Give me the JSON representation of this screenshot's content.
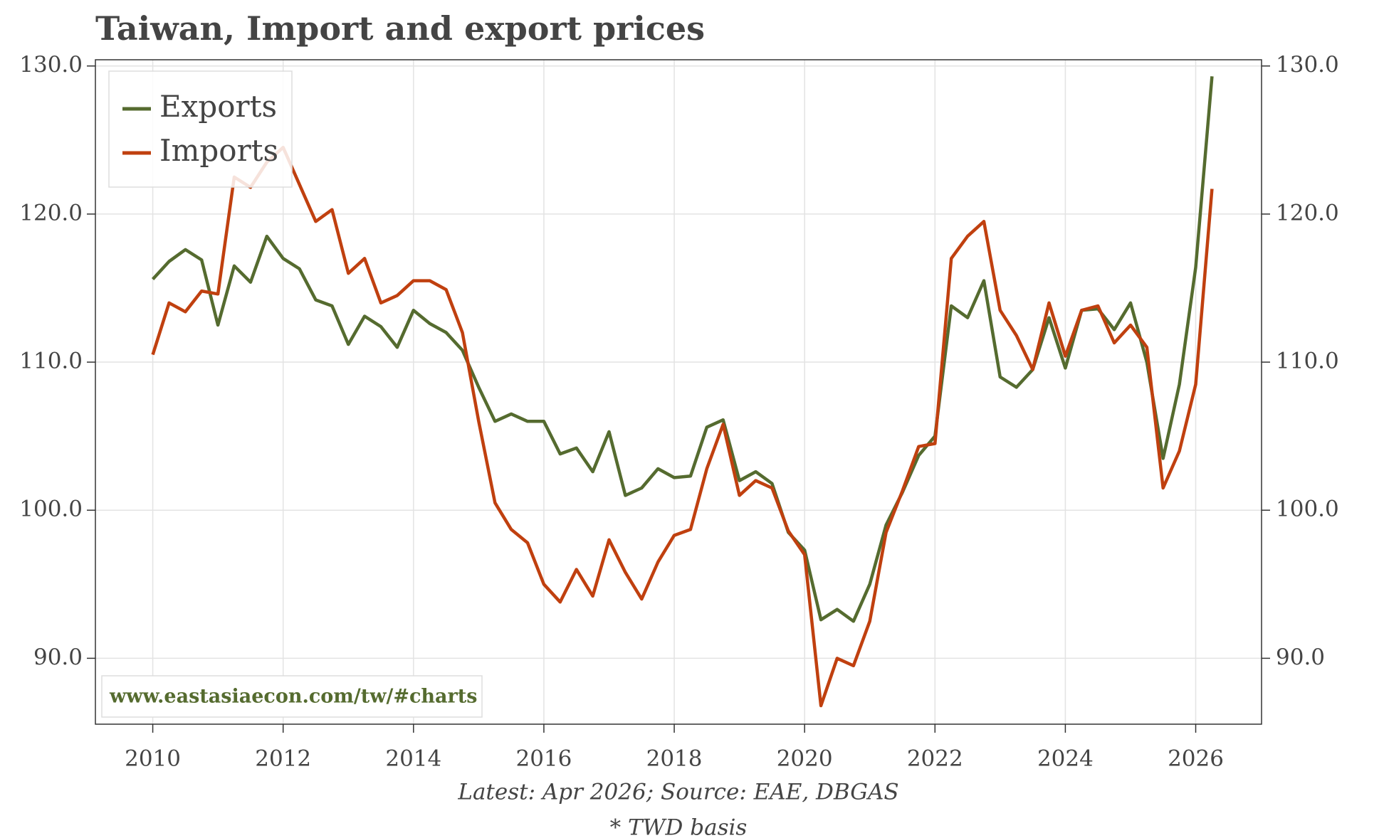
{
  "chart_data": {
    "type": "line",
    "title": "Taiwan, Import and export prices",
    "footnotes": [
      "Latest: Apr 2026; Source: EAE, DBGAS",
      "* TWD basis"
    ],
    "watermark": "www.eastasiaecon.com/tw/#charts",
    "x": [
      2010,
      2010.25,
      2010.5,
      2010.75,
      2011,
      2011.25,
      2011.5,
      2011.75,
      2012,
      2012.25,
      2012.5,
      2012.75,
      2013,
      2013.25,
      2013.5,
      2013.75,
      2014,
      2014.25,
      2014.5,
      2014.75,
      2015,
      2015.25,
      2015.5,
      2015.75,
      2016,
      2016.25,
      2016.5,
      2016.75,
      2017,
      2017.25,
      2017.5,
      2017.75,
      2018,
      2018.25,
      2018.5,
      2018.75,
      2019,
      2019.25,
      2019.5,
      2019.75,
      2020,
      2020.25,
      2020.5,
      2020.75,
      2021,
      2021.25,
      2021.5,
      2021.75,
      2022,
      2022.25,
      2022.5,
      2022.75,
      2023,
      2023.25,
      2023.5,
      2023.75,
      2024,
      2024.25,
      2024.5,
      2024.75,
      2025,
      2025.25,
      2025.5,
      2025.75,
      2026,
      2026.25
    ],
    "series": [
      {
        "name": "Exports",
        "color": "#556b2f",
        "values": [
          115.6,
          116.8,
          117.6,
          116.9,
          112.5,
          116.5,
          115.4,
          118.5,
          117.0,
          116.3,
          114.2,
          113.8,
          111.2,
          113.1,
          112.4,
          111.0,
          113.5,
          112.6,
          112.0,
          110.8,
          108.3,
          106.0,
          106.5,
          106.0,
          106.0,
          103.8,
          104.2,
          102.6,
          105.3,
          101.0,
          101.5,
          102.8,
          102.2,
          102.3,
          105.6,
          106.1,
          102.0,
          102.6,
          101.8,
          98.5,
          97.3,
          92.6,
          93.3,
          92.5,
          95.0,
          99.0,
          101.2,
          103.7,
          105.0,
          113.8,
          113.0,
          115.5,
          109.0,
          108.3,
          109.5,
          113.0,
          109.6,
          113.5,
          113.6,
          112.2,
          114.0,
          110.0,
          103.5,
          108.5,
          116.4,
          129.3
        ]
      },
      {
        "name": "Imports",
        "color": "#c0400f",
        "values": [
          110.5,
          114.0,
          113.4,
          114.8,
          114.6,
          122.5,
          121.8,
          123.5,
          124.5,
          122.0,
          119.5,
          120.3,
          116.0,
          117.0,
          114.0,
          114.5,
          115.5,
          115.5,
          114.9,
          112.0,
          106.0,
          100.5,
          98.7,
          97.8,
          95.0,
          93.8,
          96.0,
          94.2,
          98.0,
          95.8,
          94.0,
          96.5,
          98.3,
          98.7,
          102.8,
          105.8,
          101.0,
          102.0,
          101.5,
          98.6,
          97.0,
          86.8,
          90.0,
          89.5,
          92.5,
          98.5,
          101.3,
          104.3,
          104.5,
          117.0,
          118.5,
          119.5,
          113.5,
          111.8,
          109.5,
          114.0,
          110.4,
          113.5,
          113.8,
          111.3,
          112.5,
          111.0,
          101.5,
          104.0,
          108.5,
          121.7
        ]
      }
    ],
    "xlim": [
      2009.12,
      2027.01
    ],
    "xticks": [
      2010,
      2012,
      2014,
      2016,
      2018,
      2020,
      2022,
      2024,
      2026
    ],
    "ylim": [
      85.55,
      130.42
    ],
    "yticks": [
      {
        "value": 90,
        "label": "90.0"
      },
      {
        "value": 100,
        "label": "100.0"
      },
      {
        "value": 110,
        "label": "110.0"
      },
      {
        "value": 120,
        "label": "120.0"
      },
      {
        "value": 130,
        "label": "130.0"
      }
    ],
    "y2lim": [
      85.55,
      130.42
    ],
    "y2ticks": [
      {
        "value": 90,
        "label": "90.0"
      },
      {
        "value": 100,
        "label": "100.0"
      },
      {
        "value": 110,
        "label": "110.0"
      },
      {
        "value": 120,
        "label": "120.0"
      },
      {
        "value": 130,
        "label": "130.0"
      }
    ],
    "grid": true,
    "legend": "upper left"
  }
}
